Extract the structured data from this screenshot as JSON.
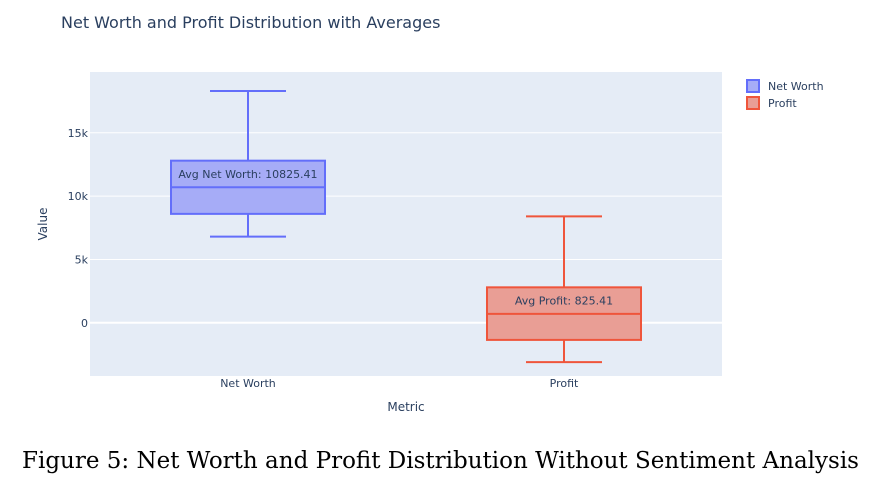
{
  "chart_data": {
    "type": "box",
    "title": "Net Worth and Profit Distribution with Averages",
    "xlabel": "Metric",
    "ylabel": "Value",
    "categories": [
      "Net Worth",
      "Profit"
    ],
    "ylim": [
      -4200,
      19800
    ],
    "yticks": [
      0,
      5000,
      10000,
      15000
    ],
    "ytick_labels": [
      "0",
      "5k",
      "10k",
      "15k"
    ],
    "grid": true,
    "legend_position": "top-right",
    "series": [
      {
        "name": "Net Worth",
        "category": "Net Worth",
        "min": 6800,
        "q1": 8600,
        "median": 10700,
        "q3": 12800,
        "max": 18300,
        "annotation": "Avg Net Worth: 10825.41",
        "line_color": "#636efa",
        "fill_color": "#a6acf7"
      },
      {
        "name": "Profit",
        "category": "Profit",
        "min": -3100,
        "q1": -1350,
        "median": 700,
        "q3": 2800,
        "max": 8400,
        "annotation": "Avg Profit: 825.41",
        "line_color": "#ef553b",
        "fill_color": "#e99e95"
      }
    ],
    "plot_background": "#e5ecf6"
  },
  "caption": "Figure 5: Net Worth and Profit Distribution Without Sentiment Analysis"
}
